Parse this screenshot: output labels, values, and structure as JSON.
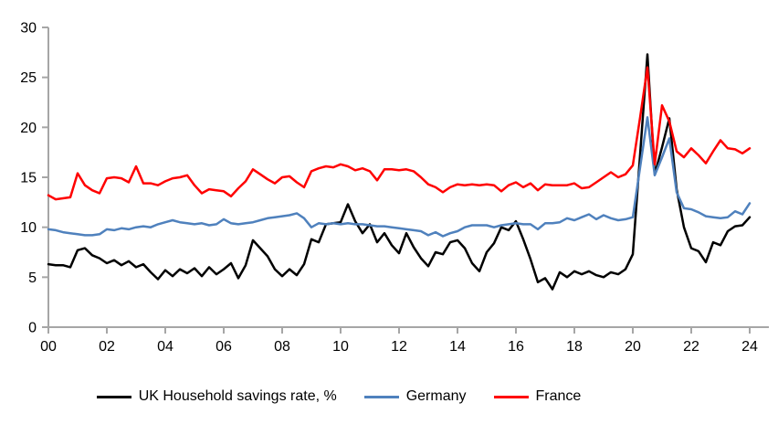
{
  "chart_data": {
    "type": "line",
    "title": "",
    "xlabel": "",
    "ylabel": "",
    "ylim": [
      0,
      30
    ],
    "y_ticks": [
      0,
      5,
      10,
      15,
      20,
      25,
      30
    ],
    "x_tick_labels": [
      "00",
      "02",
      "04",
      "06",
      "08",
      "10",
      "12",
      "14",
      "16",
      "18",
      "20",
      "22",
      "24"
    ],
    "points_per_x_tick": 8,
    "grid": false,
    "legend_position": "bottom",
    "axis_color": "#A6A6A6",
    "series": [
      {
        "name": "UK Household savings rate, %",
        "color": "#000000",
        "values": [
          6.3,
          6.2,
          6.2,
          6.0,
          7.7,
          7.9,
          7.2,
          6.9,
          6.4,
          6.7,
          6.2,
          6.6,
          6.0,
          6.3,
          5.5,
          4.8,
          5.7,
          5.1,
          5.8,
          5.4,
          5.9,
          5.1,
          6.0,
          5.3,
          5.8,
          6.4,
          4.9,
          6.2,
          8.7,
          7.9,
          7.1,
          5.8,
          5.1,
          5.8,
          5.2,
          6.3,
          8.8,
          8.5,
          10.3,
          10.4,
          10.5,
          12.3,
          10.6,
          9.4,
          10.3,
          8.5,
          9.4,
          8.2,
          7.4,
          9.4,
          8.0,
          6.9,
          6.1,
          7.5,
          7.3,
          8.5,
          8.7,
          7.9,
          6.4,
          5.6,
          7.5,
          8.4,
          10.0,
          9.7,
          10.6,
          8.8,
          6.8,
          4.5,
          4.9,
          3.8,
          5.5,
          5.0,
          5.6,
          5.3,
          5.6,
          5.2,
          5.0,
          5.5,
          5.3,
          5.8,
          7.3,
          17.3,
          27.3,
          15.3,
          18.0,
          20.9,
          13.8,
          10.0,
          7.9,
          7.6,
          6.5,
          8.5,
          8.2,
          9.6,
          10.1,
          10.2,
          11.0
        ]
      },
      {
        "name": "Germany",
        "color": "#4F81BD",
        "values": [
          9.8,
          9.7,
          9.5,
          9.4,
          9.3,
          9.2,
          9.2,
          9.3,
          9.8,
          9.7,
          9.9,
          9.8,
          10.0,
          10.1,
          10.0,
          10.3,
          10.5,
          10.7,
          10.5,
          10.4,
          10.3,
          10.4,
          10.2,
          10.3,
          10.8,
          10.4,
          10.3,
          10.4,
          10.5,
          10.7,
          10.9,
          11.0,
          11.1,
          11.2,
          11.4,
          10.9,
          10.0,
          10.4,
          10.3,
          10.4,
          10.3,
          10.4,
          10.3,
          10.3,
          10.2,
          10.1,
          10.1,
          10.0,
          9.9,
          9.8,
          9.7,
          9.6,
          9.2,
          9.5,
          9.1,
          9.4,
          9.6,
          10.0,
          10.2,
          10.2,
          10.2,
          10.0,
          10.2,
          10.3,
          10.4,
          10.3,
          10.3,
          9.8,
          10.4,
          10.4,
          10.5,
          10.9,
          10.7,
          11.0,
          11.3,
          10.8,
          11.2,
          10.9,
          10.7,
          10.8,
          11.0,
          16.0,
          21.0,
          15.2,
          17.0,
          18.9,
          13.5,
          11.9,
          11.8,
          11.5,
          11.1,
          11.0,
          10.9,
          11.0,
          11.6,
          11.3,
          12.4
        ]
      },
      {
        "name": "France",
        "color": "#FF0000",
        "values": [
          13.2,
          12.8,
          12.9,
          13.0,
          15.4,
          14.2,
          13.7,
          13.4,
          14.9,
          15.0,
          14.9,
          14.5,
          16.1,
          14.4,
          14.4,
          14.2,
          14.6,
          14.9,
          15.0,
          15.2,
          14.2,
          13.4,
          13.8,
          13.7,
          13.6,
          13.1,
          13.9,
          14.6,
          15.8,
          15.3,
          14.8,
          14.4,
          15.0,
          15.1,
          14.5,
          14.0,
          15.6,
          15.9,
          16.1,
          16.0,
          16.3,
          16.1,
          15.7,
          15.9,
          15.6,
          14.7,
          15.8,
          15.8,
          15.7,
          15.8,
          15.6,
          15.0,
          14.3,
          14.0,
          13.5,
          14.0,
          14.3,
          14.2,
          14.3,
          14.2,
          14.3,
          14.2,
          13.6,
          14.2,
          14.5,
          14.0,
          14.4,
          13.7,
          14.3,
          14.2,
          14.2,
          14.2,
          14.4,
          13.9,
          14.0,
          14.5,
          15.0,
          15.5,
          15.0,
          15.3,
          16.2,
          21.0,
          26.0,
          16.3,
          22.2,
          20.6,
          17.6,
          17.0,
          17.9,
          17.2,
          16.4,
          17.6,
          18.7,
          17.9,
          17.8,
          17.4,
          17.9
        ]
      }
    ]
  }
}
